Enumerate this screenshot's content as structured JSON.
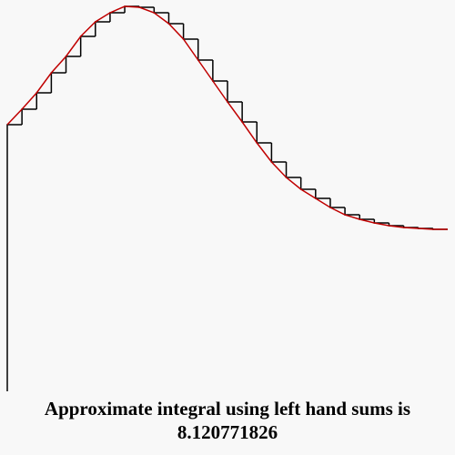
{
  "chart_data": {
    "type": "riemann",
    "caption": "Approximate integral using left hand sums is 8.120771826",
    "x": [
      0,
      1,
      2,
      3,
      4,
      5,
      6,
      7,
      8,
      9,
      10,
      11,
      12,
      13,
      14,
      15,
      16,
      17,
      18,
      19,
      20,
      21,
      22,
      23,
      24,
      25,
      26,
      27,
      28,
      29,
      30
    ],
    "values": [
      293,
      310,
      328,
      350,
      368,
      390,
      406,
      416,
      423,
      422,
      416,
      404,
      387,
      364,
      341,
      318,
      296,
      273,
      252,
      235,
      222,
      212,
      202,
      194,
      189,
      185,
      182,
      180,
      179,
      178,
      178
    ],
    "xlim": [
      0,
      30
    ],
    "ylim": [
      0,
      424
    ],
    "color": "#000000",
    "curve_color": "#c00000"
  }
}
